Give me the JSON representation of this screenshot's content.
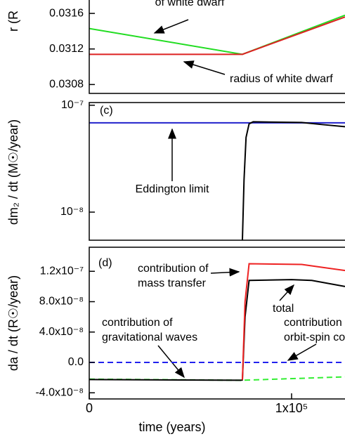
{
  "chart_data": [
    {
      "type": "line",
      "ylabel": "r (R",
      "log": false,
      "xlim": [
        0,
        126400
      ],
      "ylim": [
        0.0307,
        0.03183
      ],
      "yticks": [
        0.0308,
        0.0312,
        0.0316
      ],
      "annotations": [
        "of white dwarf",
        "radius of white dwarf"
      ],
      "series": [
        {
          "color": "#22dd22",
          "dashed": false,
          "x": [
            0,
            75700,
            126400
          ],
          "values": [
            0.03143,
            0.03114,
            0.03158
          ]
        },
        {
          "color": "#dd2222",
          "dashed": false,
          "x": [
            0,
            75700,
            126400
          ],
          "values": [
            0.03114,
            0.03114,
            0.03156
          ]
        }
      ]
    },
    {
      "type": "line",
      "ylabel": "dm₂ / dt (M☉/year)",
      "log": true,
      "xlim": [
        0,
        126400
      ],
      "ylim": [
        5.46e-09,
        1.06e-07
      ],
      "yticks": [
        {
          "value": 1e-07,
          "label": "10⁻⁷"
        },
        {
          "value": 1e-08,
          "label": "10⁻⁸"
        }
      ],
      "annotations": [
        "(c)",
        "Eddington limit"
      ],
      "series": [
        {
          "color": "#2222cc",
          "dashed": false,
          "x": [
            0,
            126400
          ],
          "values": [
            6.85e-08,
            6.85e-08
          ]
        },
        {
          "color": "#000000",
          "dashed": false,
          "x": [
            75700,
            76500,
            77500,
            79000,
            81000,
            105000,
            115000,
            126400
          ],
          "values": [
            5.5e-09,
            2e-08,
            5e-08,
            6.7e-08,
            7e-08,
            6.9e-08,
            6.6e-08,
            6.3e-08
          ]
        }
      ]
    },
    {
      "type": "line",
      "ylabel": "da / dt (R☉/year)",
      "xlabel": "time (years)",
      "log": false,
      "xlim": [
        0,
        126400
      ],
      "ylim": [
        -4.81e-08,
        1.517e-07
      ],
      "xticks": [
        0,
        {
          "value": 100000,
          "label": "1x10⁵"
        }
      ],
      "yticks": [
        {
          "value": 1.2e-07,
          "label": "1.2x10⁻⁷"
        },
        {
          "value": 8e-08,
          "label": "8.0x10⁻⁸"
        },
        {
          "value": 4e-08,
          "label": "4.0x10⁻⁸"
        },
        {
          "value": 0,
          "label": "0.0"
        },
        {
          "value": -4e-08,
          "label": "-4.0x10⁻⁸"
        }
      ],
      "annotations": [
        "(d)",
        "contribution of",
        "mass transfer",
        "total",
        "contribution of",
        "gravitational waves",
        "contribution",
        "orbit-spin co"
      ],
      "series": [
        {
          "color": "#2222ee",
          "dashed": true,
          "x": [
            0,
            126400
          ],
          "values": [
            0,
            0
          ]
        },
        {
          "color": "#33ee33",
          "dashed": true,
          "x": [
            0,
            75700,
            126400
          ],
          "values": [
            -2.2e-08,
            -2.35e-08,
            -1.9e-08
          ]
        },
        {
          "color": "#000000",
          "dashed": false,
          "x": [
            0,
            75000,
            75700,
            77000,
            79000,
            100000,
            110000,
            126400
          ],
          "values": [
            -2.25e-08,
            -2.35e-08,
            -2.3e-08,
            6e-08,
            1.08e-07,
            1.09e-07,
            1.08e-07,
            1e-07
          ]
        },
        {
          "color": "#ee2222",
          "dashed": false,
          "x": [
            75700,
            77000,
            79000,
            105000,
            126400
          ],
          "values": [
            -2.3e-08,
            8e-08,
            1.3e-07,
            1.29e-07,
            1.21e-07
          ]
        }
      ]
    }
  ]
}
